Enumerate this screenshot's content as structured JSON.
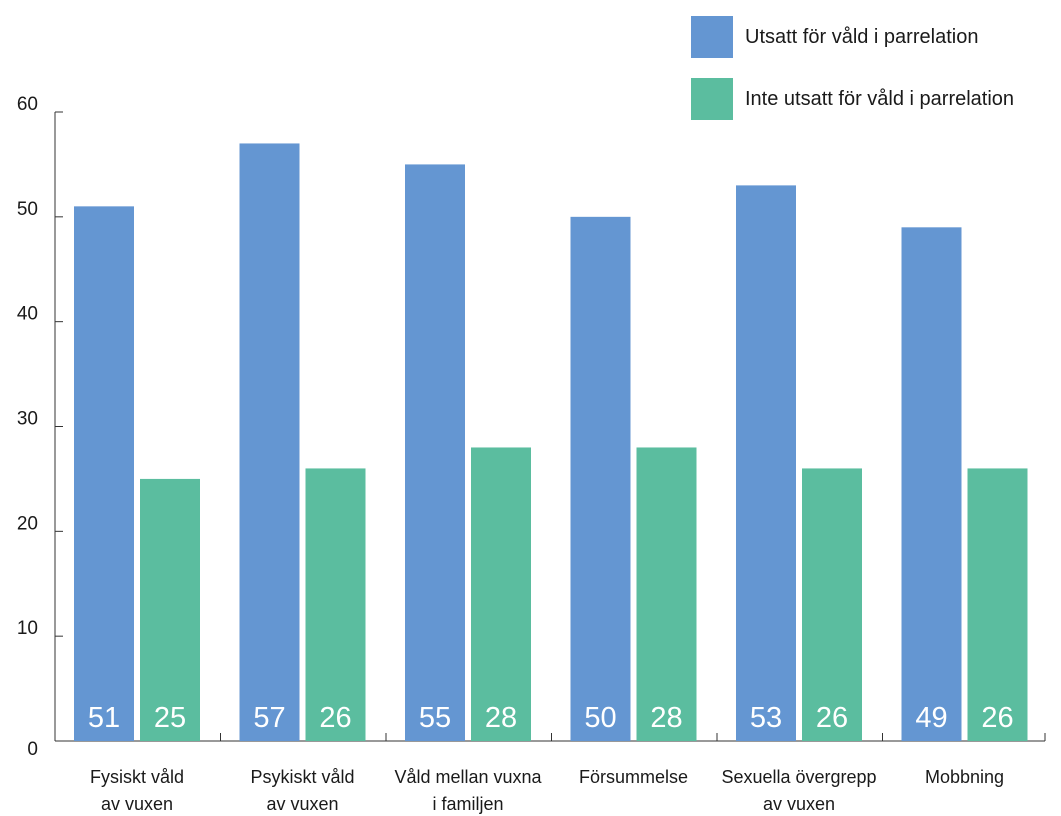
{
  "chart_data": {
    "type": "bar",
    "categories": [
      [
        "Fysiskt våld",
        "av vuxen"
      ],
      [
        "Psykiskt våld",
        "av vuxen"
      ],
      [
        "Våld mellan vuxna",
        "i familjen"
      ],
      [
        "Försummelse"
      ],
      [
        "Sexuella övergrepp",
        "av vuxen"
      ],
      [
        "Mobbning"
      ]
    ],
    "series": [
      {
        "name": "Utsatt för våld i parrelation",
        "color": "#6496d2",
        "values": [
          51,
          57,
          55,
          50,
          53,
          49
        ]
      },
      {
        "name": "Inte utsatt för våld i parrelation",
        "color": "#5bbd9f",
        "values": [
          25,
          26,
          28,
          28,
          26,
          26
        ]
      }
    ],
    "ylim": [
      0,
      60
    ],
    "yticks": [
      0,
      10,
      20,
      30,
      40,
      50,
      60
    ],
    "grid": false,
    "legend_position": "top-right",
    "data_labels": "inside-bottom"
  }
}
